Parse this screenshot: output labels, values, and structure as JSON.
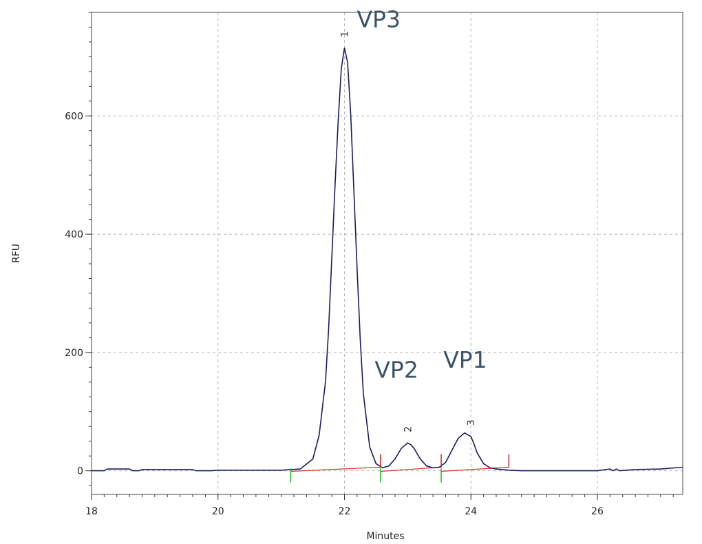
{
  "chart_data": {
    "type": "line",
    "xlabel": "Minutes",
    "ylabel": "RFU",
    "xlim": [
      18,
      27.35
    ],
    "ylim": [
      -40,
      775
    ],
    "x_ticks": [
      "18",
      "20",
      "22",
      "24",
      "26"
    ],
    "y_ticks": [
      "0",
      "200",
      "400",
      "600"
    ],
    "grid": true,
    "colors": {
      "trace": "#1a1a5e",
      "baseline": "#e03020",
      "peak_start": "#22bb22",
      "peak_end": "#cc2222",
      "grid": "#b5b5b5",
      "annotation": "#3a5466"
    },
    "series": [
      {
        "x": [
          18.0,
          18.2,
          18.25,
          18.6,
          18.65,
          18.75,
          18.8,
          19.6,
          19.65,
          19.9,
          20.0,
          20.5,
          21.0,
          21.3,
          21.5,
          21.6,
          21.7,
          21.75,
          21.8,
          21.85,
          21.9,
          21.95,
          22.0,
          22.05,
          22.1,
          22.15,
          22.2,
          22.25,
          22.3,
          22.4,
          22.5,
          22.6,
          22.7,
          22.8,
          22.9,
          23.0,
          23.05,
          23.1,
          23.2,
          23.3,
          23.4,
          23.5,
          23.6,
          23.7,
          23.8,
          23.9,
          24.0,
          24.05,
          24.1,
          24.2,
          24.3,
          24.4,
          24.5,
          24.6,
          24.8,
          25.5,
          26.0,
          26.2,
          26.25,
          26.3,
          26.35,
          26.6,
          27.0,
          27.35
        ],
        "y": [
          0,
          0,
          3,
          3,
          0,
          0,
          2,
          2,
          0,
          0,
          1,
          1,
          1,
          3,
          20,
          60,
          150,
          240,
          360,
          480,
          590,
          680,
          715,
          690,
          600,
          470,
          340,
          220,
          130,
          40,
          12,
          5,
          8,
          20,
          38,
          47,
          44,
          38,
          20,
          8,
          5,
          6,
          14,
          35,
          55,
          64,
          58,
          45,
          30,
          12,
          5,
          3,
          2,
          1,
          0,
          0,
          0,
          3,
          0,
          3,
          0,
          2,
          3,
          6
        ]
      }
    ],
    "peaks": [
      {
        "number": "1",
        "label": "VP3",
        "time": 22.0
      },
      {
        "number": "2",
        "label": "VP2",
        "time": 23.0
      },
      {
        "number": "3",
        "label": "VP1",
        "time": 24.0
      }
    ],
    "integration_marks": [
      {
        "kind": "start",
        "time": 21.15
      },
      {
        "kind": "start",
        "time": 22.57
      },
      {
        "kind": "start",
        "time": 23.53
      },
      {
        "kind": "end",
        "time": 22.57
      },
      {
        "kind": "end",
        "time": 23.53
      },
      {
        "kind": "end",
        "time": 24.6
      }
    ]
  }
}
